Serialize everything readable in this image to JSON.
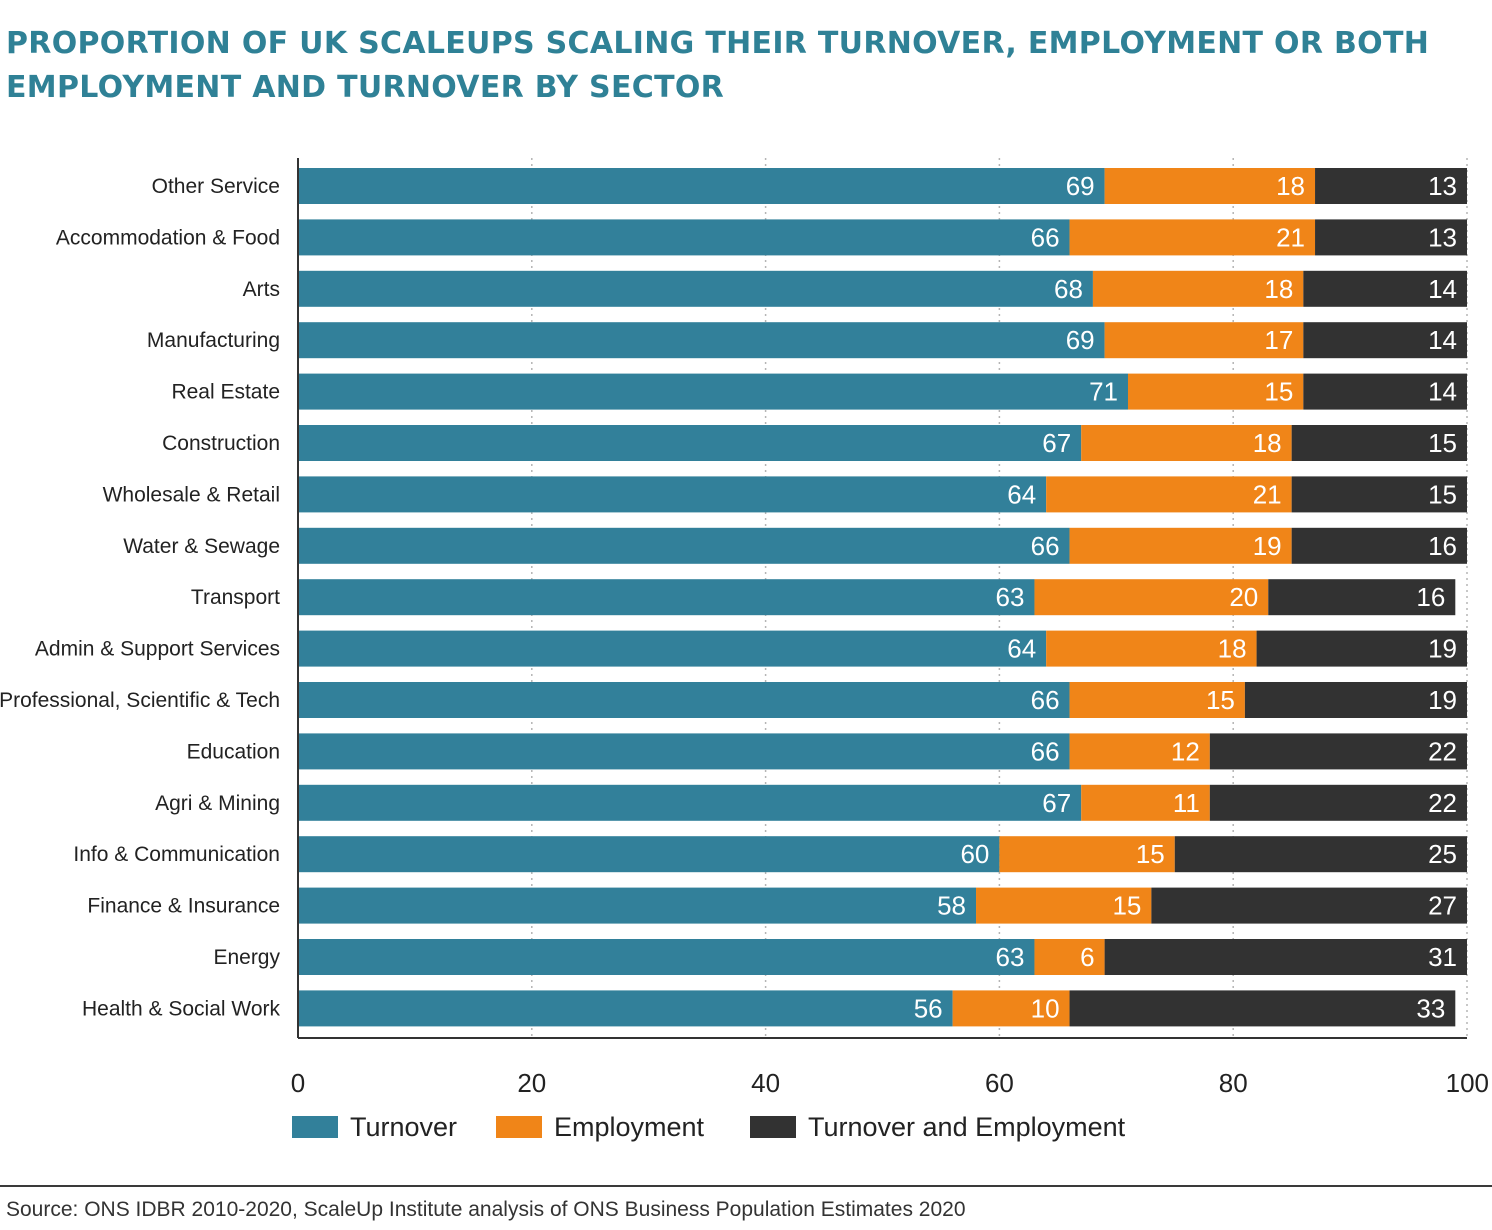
{
  "title": "PROPORTION OF UK SCALEUPS SCALING THEIR TURNOVER, EMPLOYMENT OR BOTH EMPLOYMENT AND TURNOVER BY SECTOR",
  "source": "Source: ONS IDBR 2010-2020, ScaleUp Institute analysis of ONS Business Population Estimates 2020",
  "chart_data": {
    "type": "bar",
    "orientation": "horizontal",
    "stacked": true,
    "categories": [
      "Other Service",
      "Accommodation & Food",
      "Arts",
      "Manufacturing",
      "Real Estate",
      "Construction",
      "Wholesale & Retail",
      "Water & Sewage",
      "Transport",
      "Admin & Support Services",
      "Professional, Scientific & Tech",
      "Education",
      "Agri & Mining",
      "Info & Communication",
      "Finance & Insurance",
      "Energy",
      "Health & Social Work"
    ],
    "series": [
      {
        "name": "Turnover",
        "color": "#32809a",
        "values": [
          69,
          66,
          68,
          69,
          71,
          67,
          64,
          66,
          63,
          64,
          66,
          66,
          67,
          60,
          58,
          63,
          56
        ]
      },
      {
        "name": "Employment",
        "color": "#f08518",
        "values": [
          18,
          21,
          18,
          17,
          15,
          18,
          21,
          19,
          20,
          18,
          15,
          12,
          11,
          15,
          15,
          6,
          10
        ]
      },
      {
        "name": "Turnover and Employment",
        "color": "#323232",
        "values": [
          13,
          13,
          14,
          14,
          14,
          15,
          15,
          16,
          16,
          19,
          19,
          22,
          22,
          25,
          27,
          31,
          33
        ]
      }
    ],
    "xlim": [
      0,
      100
    ],
    "xticks": [
      0,
      20,
      40,
      60,
      80,
      100
    ],
    "grid": true,
    "legend": "bottom"
  }
}
